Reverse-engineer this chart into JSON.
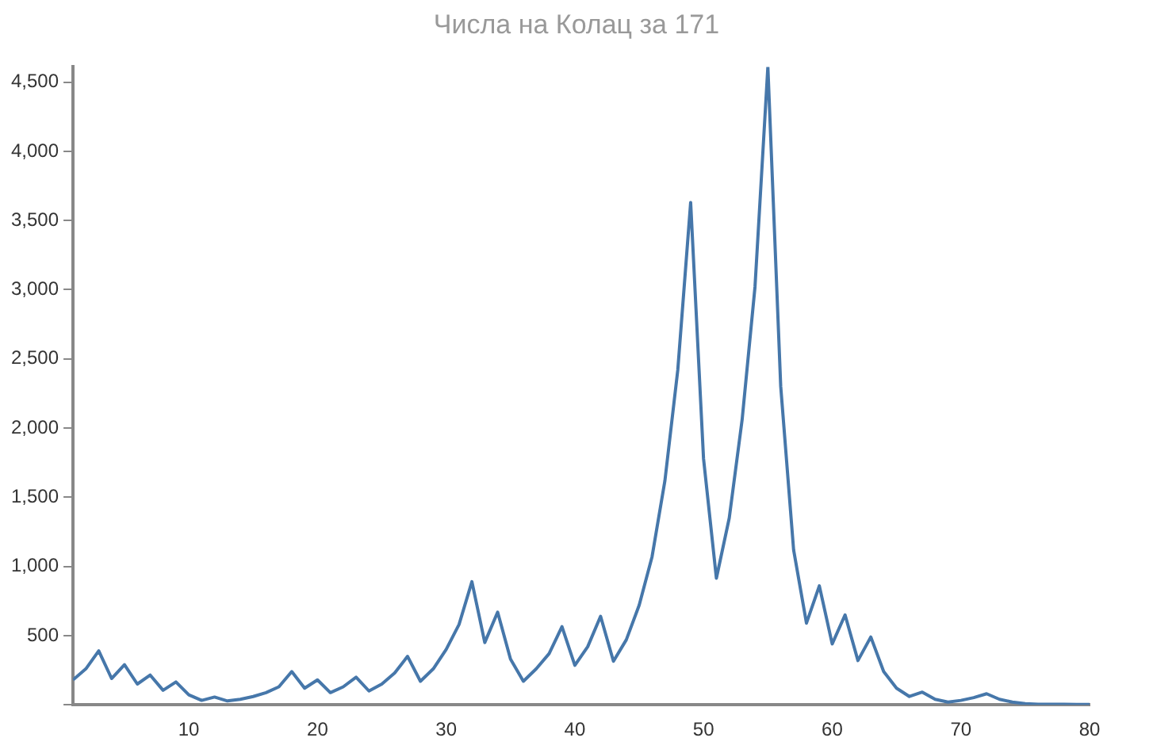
{
  "chart_data": {
    "type": "line",
    "title": "Числа на Колац за 171",
    "x": [
      1,
      2,
      3,
      4,
      5,
      6,
      7,
      8,
      9,
      10,
      11,
      12,
      13,
      14,
      15,
      16,
      17,
      18,
      19,
      20,
      21,
      22,
      23,
      24,
      25,
      26,
      27,
      28,
      29,
      30,
      31,
      32,
      33,
      34,
      35,
      36,
      37,
      38,
      39,
      40,
      41,
      42,
      43,
      44,
      45,
      46,
      47,
      48,
      49,
      50,
      51,
      52,
      53,
      54,
      55,
      56,
      57,
      58,
      59,
      60,
      61,
      62,
      63,
      64,
      65,
      66,
      67,
      68,
      69,
      70,
      71,
      72,
      73,
      74,
      75,
      76,
      77,
      78,
      79,
      80
    ],
    "series": [
      {
        "color": "#4677aa",
        "values": [
          180,
          260,
          390,
          190,
          290,
          150,
          215,
          105,
          165,
          72,
          32,
          56,
          28,
          40,
          60,
          88,
          130,
          240,
          120,
          180,
          88,
          130,
          200,
          100,
          150,
          230,
          350,
          170,
          260,
          400,
          580,
          890,
          450,
          670,
          330,
          170,
          260,
          370,
          565,
          285,
          420,
          640,
          315,
          470,
          720,
          1070,
          1620,
          2420,
          3630,
          1780,
          915,
          1350,
          2060,
          3020,
          4610,
          2300,
          1120,
          590,
          860,
          440,
          650,
          320,
          490,
          240,
          120,
          60,
          92,
          40,
          20,
          32,
          52,
          80,
          40,
          20,
          8,
          4,
          4,
          4,
          2,
          2
        ]
      }
    ],
    "xlim": [
      1,
      80
    ],
    "xticks": [
      10,
      20,
      30,
      40,
      50,
      60,
      70,
      80
    ],
    "ylim": [
      0,
      4610
    ],
    "yticks": [
      {
        "value": 0,
        "label": null
      },
      {
        "value": 500,
        "label": "500"
      },
      {
        "value": 1000,
        "label": "1,000"
      },
      {
        "value": 1500,
        "label": "1,500"
      },
      {
        "value": 2000,
        "label": "2,000"
      },
      {
        "value": 2500,
        "label": "2,500"
      },
      {
        "value": 3000,
        "label": "3,000"
      },
      {
        "value": 3500,
        "label": "3,500"
      },
      {
        "value": 4000,
        "label": "4,000"
      },
      {
        "value": 4500,
        "label": "4,500"
      }
    ],
    "grid": false,
    "legend": false,
    "marker": "none",
    "line_style": "solid"
  }
}
